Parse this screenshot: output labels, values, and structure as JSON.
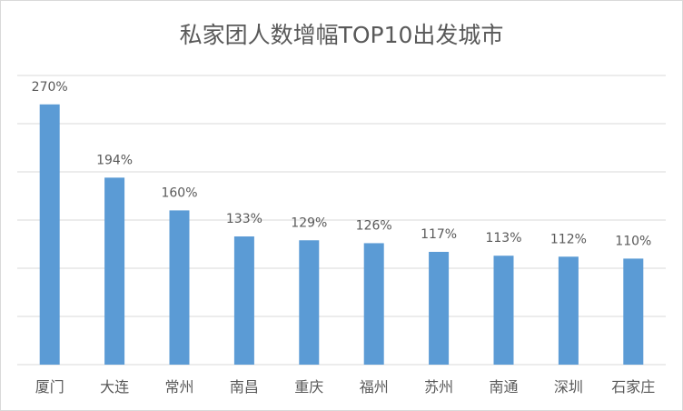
{
  "chart_data": {
    "type": "bar",
    "title": "私家团人数增幅TOP10出发城市",
    "categories": [
      "厦门",
      "大连",
      "常州",
      "南昌",
      "重庆",
      "福州",
      "苏州",
      "南通",
      "深圳",
      "石家庄"
    ],
    "values": [
      270,
      194,
      160,
      133,
      129,
      126,
      117,
      113,
      112,
      110
    ],
    "value_labels": [
      "270%",
      "194%",
      "160%",
      "133%",
      "129%",
      "126%",
      "117%",
      "113%",
      "112%",
      "110%"
    ],
    "ylim": [
      0,
      300
    ],
    "grid": true,
    "legend": "none",
    "colors": {
      "bar": "#5b9bd5",
      "grid": "#d9d9d9",
      "text": "#595959"
    }
  }
}
